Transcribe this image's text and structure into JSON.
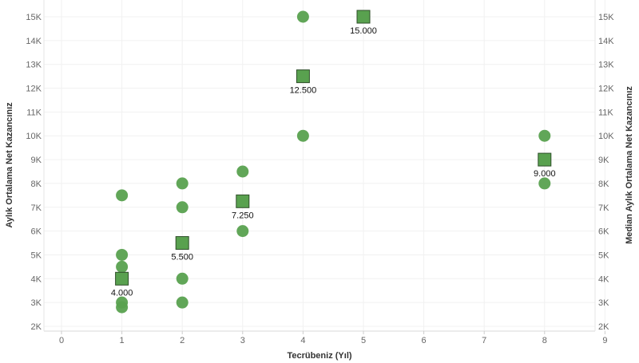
{
  "chart_data": {
    "type": "scatter",
    "xlabel": "Tecrübeniz (Yıl)",
    "ylabel_left": "Aylık Ortalama Net Kazancınız",
    "ylabel_right": "Median Aylık Ortalama Net Kazancınız",
    "xlim": [
      0,
      9
    ],
    "ylim": [
      2000,
      15500
    ],
    "x_ticks": [
      "0",
      "1",
      "2",
      "3",
      "4",
      "5",
      "6",
      "7",
      "8",
      "9"
    ],
    "y_ticks": [
      {
        "value": 2000,
        "label": "2K"
      },
      {
        "value": 3000,
        "label": "3K"
      },
      {
        "value": 4000,
        "label": "4K"
      },
      {
        "value": 5000,
        "label": "5K"
      },
      {
        "value": 6000,
        "label": "6K"
      },
      {
        "value": 7000,
        "label": "7K"
      },
      {
        "value": 8000,
        "label": "8K"
      },
      {
        "value": 9000,
        "label": "9K"
      },
      {
        "value": 10000,
        "label": "10K"
      },
      {
        "value": 11000,
        "label": "11K"
      },
      {
        "value": 12000,
        "label": "12K"
      },
      {
        "value": 13000,
        "label": "13K"
      },
      {
        "value": 14000,
        "label": "14K"
      },
      {
        "value": 15000,
        "label": "15K"
      }
    ],
    "series": [
      {
        "name": "Aylık Ortalama Net Kazancınız",
        "marker": "circle",
        "color": "#59a14f",
        "points": [
          {
            "x": 1,
            "y": 7500
          },
          {
            "x": 1,
            "y": 5000
          },
          {
            "x": 1,
            "y": 4500
          },
          {
            "x": 1,
            "y": 3000
          },
          {
            "x": 1,
            "y": 2800
          },
          {
            "x": 2,
            "y": 8000
          },
          {
            "x": 2,
            "y": 7000
          },
          {
            "x": 2,
            "y": 4000
          },
          {
            "x": 2,
            "y": 3000
          },
          {
            "x": 3,
            "y": 8500
          },
          {
            "x": 3,
            "y": 6000
          },
          {
            "x": 4,
            "y": 15000
          },
          {
            "x": 4,
            "y": 10000
          },
          {
            "x": 8,
            "y": 10000
          },
          {
            "x": 8,
            "y": 8000
          }
        ]
      },
      {
        "name": "Median Aylık Ortalama Net Kazancınız",
        "marker": "square",
        "color": "#59a14f",
        "points": [
          {
            "x": 1,
            "y": 4000,
            "label": "4.000"
          },
          {
            "x": 2,
            "y": 5500,
            "label": "5.500"
          },
          {
            "x": 3,
            "y": 7250,
            "label": "7.250"
          },
          {
            "x": 4,
            "y": 12500,
            "label": "12.500"
          },
          {
            "x": 5,
            "y": 15000,
            "label": "15.000"
          },
          {
            "x": 8,
            "y": 9000,
            "label": "9.000"
          }
        ]
      }
    ]
  }
}
